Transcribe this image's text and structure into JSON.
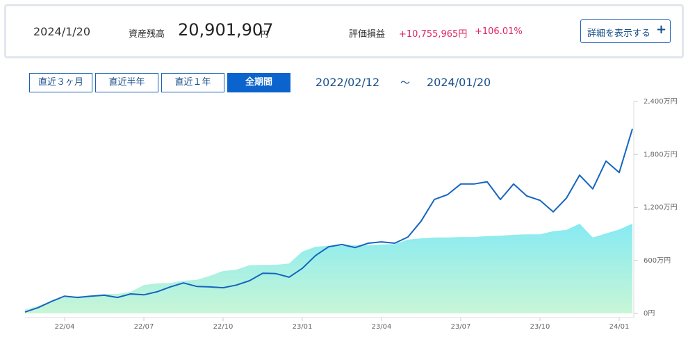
{
  "header": {
    "date": "2024/1/20",
    "asset_label": "資産残高",
    "asset_value": "20,901,907",
    "asset_unit": "円",
    "pl_label": "評価損益",
    "pl_value": "+10,755,965円",
    "pl_rate": "+106.01%",
    "detail_button": "詳細を表示する"
  },
  "range_buttons": [
    "直近３ヶ月",
    "直近半年",
    "直近１年",
    "全期間"
  ],
  "period": {
    "start": "2022/02/12",
    "separator": "～",
    "end": "2024/01/20"
  },
  "chart_data": {
    "type": "line",
    "categories": [
      null,
      null,
      null,
      "22/04",
      null,
      null,
      null,
      null,
      null,
      "22/07",
      null,
      null,
      null,
      null,
      null,
      "22/10",
      null,
      null,
      null,
      null,
      null,
      "23/01",
      null,
      null,
      null,
      null,
      null,
      "23/04",
      null,
      null,
      null,
      null,
      null,
      "23/07",
      null,
      null,
      null,
      null,
      null,
      "23/10",
      null,
      null,
      null,
      null,
      null,
      "24/01",
      null
    ],
    "series": [
      {
        "color": "#86eaf2",
        "area": true,
        "values": [
          45,
          85,
          135,
          180,
          195,
          205,
          220,
          220,
          245,
          320,
          340,
          345,
          370,
          380,
          425,
          480,
          495,
          545,
          550,
          550,
          565,
          700,
          755,
          765,
          765,
          770,
          770,
          780,
          785,
          835,
          850,
          860,
          860,
          865,
          865,
          875,
          880,
          890,
          895,
          895,
          930,
          945,
          1015,
          860,
          905,
          950,
          1015
        ]
      },
      {
        "color": "#1565c0",
        "area": false,
        "values": [
          15,
          65,
          135,
          195,
          180,
          195,
          205,
          180,
          220,
          210,
          245,
          300,
          345,
          305,
          300,
          290,
          320,
          370,
          455,
          450,
          410,
          510,
          655,
          755,
          780,
          745,
          795,
          810,
          795,
          865,
          1045,
          1290,
          1345,
          1465,
          1465,
          1490,
          1290,
          1465,
          1330,
          1280,
          1150,
          1305,
          1565,
          1410,
          1725,
          1595,
          2090
        ]
      }
    ],
    "ylim": [
      0,
      2400
    ],
    "yticks": [
      {
        "value": 0,
        "label": "0円"
      },
      {
        "value": 600,
        "label": "600万円"
      },
      {
        "value": 1200,
        "label": "1,200万円"
      },
      {
        "value": 1800,
        "label": "1,800万円"
      },
      {
        "value": 2400,
        "label": "2,400万円"
      }
    ]
  }
}
